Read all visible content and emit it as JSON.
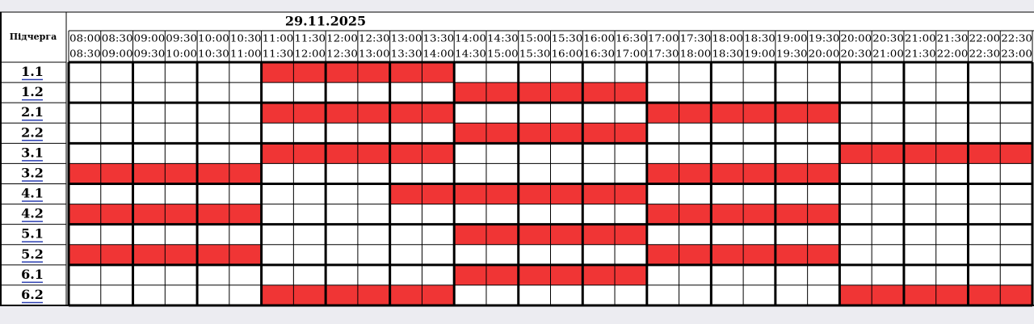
{
  "header": {
    "row_header": "Підчерга",
    "date": "29.11.2025"
  },
  "slots": [
    {
      "from": "08:00",
      "to": "08:30"
    },
    {
      "from": "08:30",
      "to": "09:00"
    },
    {
      "from": "09:00",
      "to": "09:30"
    },
    {
      "from": "09:30",
      "to": "10:00"
    },
    {
      "from": "10:00",
      "to": "10:30"
    },
    {
      "from": "10:30",
      "to": "11:00"
    },
    {
      "from": "11:00",
      "to": "11:30"
    },
    {
      "from": "11:30",
      "to": "12:00"
    },
    {
      "from": "12:00",
      "to": "12:30"
    },
    {
      "from": "12:30",
      "to": "13:00"
    },
    {
      "from": "13:00",
      "to": "13:30"
    },
    {
      "from": "13:30",
      "to": "14:00"
    },
    {
      "from": "14:00",
      "to": "14:30"
    },
    {
      "from": "14:30",
      "to": "15:00"
    },
    {
      "from": "15:00",
      "to": "15:30"
    },
    {
      "from": "15:30",
      "to": "16:00"
    },
    {
      "from": "16:00",
      "to": "16:30"
    },
    {
      "from": "16:30",
      "to": "17:00"
    },
    {
      "from": "17:00",
      "to": "17:30"
    },
    {
      "from": "17:30",
      "to": "18:00"
    },
    {
      "from": "18:00",
      "to": "18:30"
    },
    {
      "from": "18:30",
      "to": "19:00"
    },
    {
      "from": "19:00",
      "to": "19:30"
    },
    {
      "from": "19:30",
      "to": "20:00"
    },
    {
      "from": "20:00",
      "to": "20:30"
    },
    {
      "from": "20:30",
      "to": "21:00"
    },
    {
      "from": "21:00",
      "to": "21:30"
    },
    {
      "from": "21:30",
      "to": "22:00"
    },
    {
      "from": "22:00",
      "to": "22:30"
    },
    {
      "from": "22:30",
      "to": "23:00"
    }
  ],
  "outage_color": "#f03535",
  "rows": [
    {
      "label": "1.1",
      "outage": [
        0,
        0,
        0,
        0,
        0,
        0,
        1,
        1,
        1,
        1,
        1,
        1,
        0,
        0,
        0,
        0,
        0,
        0,
        0,
        0,
        0,
        0,
        0,
        0,
        0,
        0,
        0,
        0,
        0,
        0
      ]
    },
    {
      "label": "1.2",
      "outage": [
        0,
        0,
        0,
        0,
        0,
        0,
        0,
        0,
        0,
        0,
        0,
        0,
        1,
        1,
        1,
        1,
        1,
        1,
        0,
        0,
        0,
        0,
        0,
        0,
        0,
        0,
        0,
        0,
        0,
        0
      ]
    },
    {
      "label": "2.1",
      "outage": [
        0,
        0,
        0,
        0,
        0,
        0,
        1,
        1,
        1,
        1,
        1,
        1,
        0,
        0,
        0,
        0,
        0,
        0,
        1,
        1,
        1,
        1,
        1,
        1,
        0,
        0,
        0,
        0,
        0,
        0
      ]
    },
    {
      "label": "2.2",
      "outage": [
        0,
        0,
        0,
        0,
        0,
        0,
        0,
        0,
        0,
        0,
        0,
        0,
        1,
        1,
        1,
        1,
        1,
        1,
        0,
        0,
        0,
        0,
        0,
        0,
        0,
        0,
        0,
        0,
        0,
        0
      ]
    },
    {
      "label": "3.1",
      "outage": [
        0,
        0,
        0,
        0,
        0,
        0,
        1,
        1,
        1,
        1,
        1,
        1,
        0,
        0,
        0,
        0,
        0,
        0,
        0,
        0,
        0,
        0,
        0,
        0,
        1,
        1,
        1,
        1,
        1,
        1
      ]
    },
    {
      "label": "3.2",
      "outage": [
        1,
        1,
        1,
        1,
        1,
        1,
        0,
        0,
        0,
        0,
        0,
        0,
        0,
        0,
        0,
        0,
        0,
        0,
        1,
        1,
        1,
        1,
        1,
        1,
        0,
        0,
        0,
        0,
        0,
        0
      ]
    },
    {
      "label": "4.1",
      "outage": [
        0,
        0,
        0,
        0,
        0,
        0,
        0,
        0,
        0,
        0,
        1,
        1,
        1,
        1,
        1,
        1,
        1,
        1,
        0,
        0,
        0,
        0,
        0,
        0,
        0,
        0,
        0,
        0,
        0,
        0
      ]
    },
    {
      "label": "4.2",
      "outage": [
        1,
        1,
        1,
        1,
        1,
        1,
        0,
        0,
        0,
        0,
        0,
        0,
        0,
        0,
        0,
        0,
        0,
        0,
        1,
        1,
        1,
        1,
        1,
        1,
        0,
        0,
        0,
        0,
        0,
        0
      ]
    },
    {
      "label": "5.1",
      "outage": [
        0,
        0,
        0,
        0,
        0,
        0,
        0,
        0,
        0,
        0,
        0,
        0,
        1,
        1,
        1,
        1,
        1,
        1,
        0,
        0,
        0,
        0,
        0,
        0,
        0,
        0,
        0,
        0,
        0,
        0
      ]
    },
    {
      "label": "5.2",
      "outage": [
        1,
        1,
        1,
        1,
        1,
        1,
        0,
        0,
        0,
        0,
        0,
        0,
        0,
        0,
        0,
        0,
        0,
        0,
        1,
        1,
        1,
        1,
        1,
        1,
        0,
        0,
        0,
        0,
        0,
        0
      ]
    },
    {
      "label": "6.1",
      "outage": [
        0,
        0,
        0,
        0,
        0,
        0,
        0,
        0,
        0,
        0,
        0,
        0,
        1,
        1,
        1,
        1,
        1,
        1,
        0,
        0,
        0,
        0,
        0,
        0,
        0,
        0,
        0,
        0,
        0,
        0
      ]
    },
    {
      "label": "6.2",
      "outage": [
        0,
        0,
        0,
        0,
        0,
        0,
        1,
        1,
        1,
        1,
        1,
        1,
        0,
        0,
        0,
        0,
        0,
        0,
        0,
        0,
        0,
        0,
        0,
        0,
        1,
        1,
        1,
        1,
        1,
        1
      ]
    }
  ]
}
